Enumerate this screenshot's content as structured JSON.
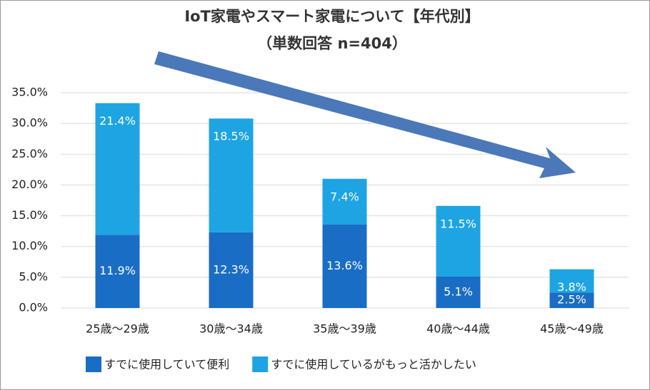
{
  "chart_data": {
    "type": "stacked_bar",
    "title": "IoT家電やスマート家電について【年代別】",
    "subtitle": "（単数回答 n=404）",
    "categories": [
      "25歳～29歳",
      "30歳～34歳",
      "35歳～39歳",
      "40歳～44歳",
      "45歳～49歳"
    ],
    "series": [
      {
        "name": "すでに使用していて便利",
        "color": "#1a6dc4",
        "values": [
          11.9,
          12.3,
          13.6,
          5.1,
          2.5
        ],
        "value_labels": [
          "11.9%",
          "12.3%",
          "13.6%",
          "5.1%",
          "2.5%"
        ]
      },
      {
        "name": "すでに使用しているがもっと活かしたい",
        "color": "#1ea4e2",
        "values": [
          21.4,
          18.5,
          7.4,
          11.5,
          3.8
        ],
        "value_labels": [
          "21.4%",
          "18.5%",
          "7.4%",
          "11.5%",
          "3.8%"
        ]
      }
    ],
    "ylim": [
      0,
      35
    ],
    "yticks": [
      {
        "value": 0,
        "label": "0.0%"
      },
      {
        "value": 5,
        "label": "5.0%"
      },
      {
        "value": 10,
        "label": "10.0%"
      },
      {
        "value": 15,
        "label": "15.0%"
      },
      {
        "value": 20,
        "label": "20.0%"
      },
      {
        "value": 25,
        "label": "25.0%"
      },
      {
        "value": 30,
        "label": "30.0%"
      },
      {
        "value": 35,
        "label": "35.0%"
      }
    ],
    "grid": true,
    "legend": "bottom"
  }
}
